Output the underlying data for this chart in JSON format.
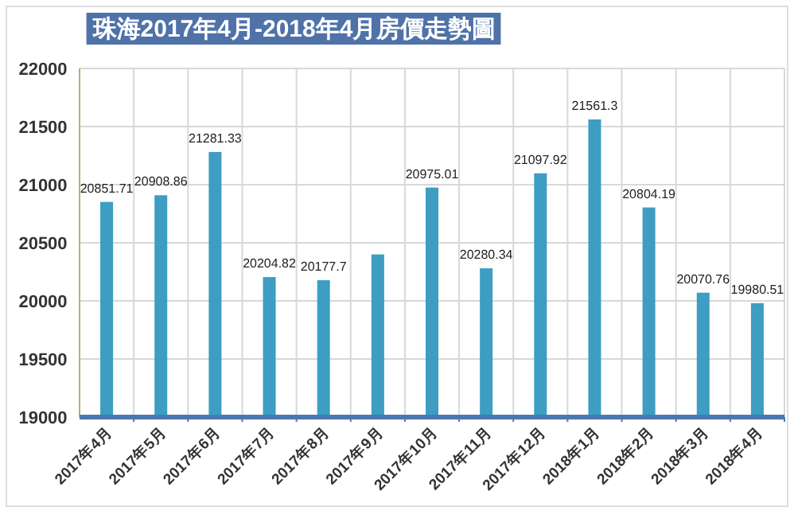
{
  "chart_data": {
    "type": "bar",
    "title": "珠海2017年4月-2018年4月房價走勢圖",
    "categories": [
      "2017年4月",
      "2017年5月",
      "2017年6月",
      "2017年7月",
      "2017年8月",
      "2017年9月",
      "2017年10月",
      "2017年11月",
      "2017年12月",
      "2018年1月",
      "2018年2月",
      "2018年3月",
      "2018年4月"
    ],
    "values": [
      20851.71,
      20908.86,
      21281.33,
      20204.82,
      20177.7,
      20400,
      20975.01,
      20280.34,
      21097.92,
      21561.3,
      20804.19,
      20070.76,
      19980.51
    ],
    "value_labels": [
      "20851.71",
      "20908.86",
      "21281.33",
      "20204.82",
      "20177.7",
      null,
      "20975.01",
      "20280.34",
      "21097.92",
      "21561.3",
      "20804.19",
      "20070.76",
      "19980.51"
    ],
    "color": "#3d9dc2",
    "ylim": [
      19000,
      22000
    ],
    "yticks": [
      19000,
      19500,
      20000,
      20500,
      21000,
      21500,
      22000
    ],
    "grid": true
  }
}
